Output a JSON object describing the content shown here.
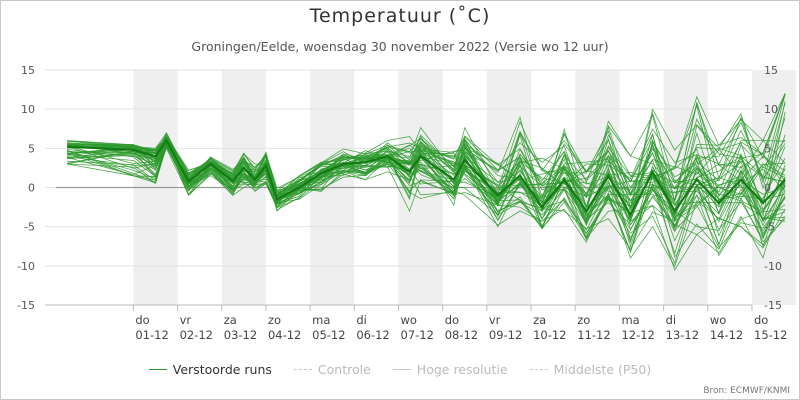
{
  "title": "Temperatuur (˚C)",
  "subtitle": "Groningen/Eelde, woensdag 30 november 2022 (Versie wo 12 uur)",
  "source": "Bron: ECMWF/KNMI",
  "colors": {
    "ensemble": "#2e9a2e",
    "ensemble_dark": "#137a13",
    "high_res": "#999999",
    "inactive_legend": "#c8c8c8",
    "band": "#efefef",
    "grid": "#e3e3e3"
  },
  "legend": [
    {
      "label": "Verstoorde runs",
      "active": true,
      "style": "solid",
      "color_key": "ensemble"
    },
    {
      "label": "Controle",
      "active": false,
      "style": "dashed",
      "color_key": "inactive_legend"
    },
    {
      "label": "Hoge resolutie",
      "active": false,
      "style": "solid",
      "color_key": "inactive_legend"
    },
    {
      "label": "Middelste (P50)",
      "active": false,
      "style": "dashed",
      "color_key": "inactive_legend"
    }
  ],
  "chart_data": {
    "type": "line",
    "title": "Temperatuur (˚C)",
    "xlabel": "",
    "ylabel": "",
    "ylim": [
      -15,
      15
    ],
    "yticks": [
      -15,
      -10,
      -5,
      0,
      5,
      10,
      15
    ],
    "y_axis_both_sides": true,
    "grid": true,
    "legend_position": "bottom",
    "x_range_days": [
      "30-11",
      "16-12"
    ],
    "day_labels": [
      {
        "day": "do",
        "date": "01-12"
      },
      {
        "day": "vr",
        "date": "02-12"
      },
      {
        "day": "za",
        "date": "03-12"
      },
      {
        "day": "zo",
        "date": "04-12"
      },
      {
        "day": "ma",
        "date": "05-12"
      },
      {
        "day": "di",
        "date": "06-12"
      },
      {
        "day": "wo",
        "date": "07-12"
      },
      {
        "day": "do",
        "date": "08-12"
      },
      {
        "day": "vr",
        "date": "09-12"
      },
      {
        "day": "za",
        "date": "10-12"
      },
      {
        "day": "zo",
        "date": "11-12"
      },
      {
        "day": "ma",
        "date": "12-12"
      },
      {
        "day": "di",
        "date": "13-12"
      },
      {
        "day": "wo",
        "date": "14-12"
      },
      {
        "day": "do",
        "date": "15-12"
      }
    ],
    "shaded_days": [
      "01-12",
      "03-12",
      "05-12",
      "07-12",
      "09-12",
      "11-12",
      "13-12",
      "15-12"
    ],
    "ensemble_member_count": 50,
    "ensemble_median": [
      {
        "t": "30-11 12:00",
        "y": 5.2
      },
      {
        "t": "01-12 00:00",
        "y": 4.8
      },
      {
        "t": "01-12 12:00",
        "y": 4.0
      },
      {
        "t": "01-12 18:00",
        "y": 6.0
      },
      {
        "t": "02-12 06:00",
        "y": 0.8
      },
      {
        "t": "02-12 18:00",
        "y": 3.0
      },
      {
        "t": "03-12 06:00",
        "y": 0.8
      },
      {
        "t": "03-12 12:00",
        "y": 2.5
      },
      {
        "t": "03-12 18:00",
        "y": 1.0
      },
      {
        "t": "04-12 00:00",
        "y": 2.8
      },
      {
        "t": "04-12 06:00",
        "y": -1.5
      },
      {
        "t": "04-12 18:00",
        "y": 0.0
      },
      {
        "t": "05-12 06:00",
        "y": 1.8
      },
      {
        "t": "05-12 18:00",
        "y": 3.0
      },
      {
        "t": "06-12 06:00",
        "y": 3.2
      },
      {
        "t": "06-12 18:00",
        "y": 4.0
      },
      {
        "t": "07-12 06:00",
        "y": 2.0
      },
      {
        "t": "07-12 12:00",
        "y": 4.0
      },
      {
        "t": "08-12 06:00",
        "y": 1.0
      },
      {
        "t": "08-12 12:00",
        "y": 3.5
      },
      {
        "t": "09-12 06:00",
        "y": -1.0
      },
      {
        "t": "09-12 18:00",
        "y": 1.5
      },
      {
        "t": "10-12 06:00",
        "y": -2.5
      },
      {
        "t": "10-12 18:00",
        "y": 1.0
      },
      {
        "t": "11-12 06:00",
        "y": -3.0
      },
      {
        "t": "11-12 18:00",
        "y": 1.5
      },
      {
        "t": "12-12 06:00",
        "y": -3.5
      },
      {
        "t": "12-12 18:00",
        "y": 2.0
      },
      {
        "t": "13-12 06:00",
        "y": -3.0
      },
      {
        "t": "13-12 18:00",
        "y": 1.0
      },
      {
        "t": "14-12 06:00",
        "y": -2.0
      },
      {
        "t": "14-12 18:00",
        "y": 1.0
      },
      {
        "t": "15-12 06:00",
        "y": -2.0
      },
      {
        "t": "15-12 18:00",
        "y": 1.0
      }
    ],
    "ensemble_spread_min": [
      3,
      1.5,
      0.5,
      5,
      -1,
      1.5,
      -1,
      0,
      -0.5,
      0.5,
      -3,
      -1.5,
      -0.5,
      1,
      1,
      2,
      -3,
      -2,
      -3,
      -1,
      -5,
      -3,
      -6,
      -3,
      -7,
      -4,
      -9,
      -5,
      -11,
      -6,
      -9,
      -5,
      -9,
      -5
    ],
    "ensemble_spread_max": [
      6,
      5.5,
      5,
      7,
      2.5,
      4,
      2.5,
      4.5,
      3,
      4.5,
      0,
      1.5,
      3.5,
      5,
      5,
      6,
      6.5,
      8,
      6,
      8,
      5,
      9,
      4,
      8,
      4,
      9,
      4,
      10,
      5,
      12,
      6,
      10,
      6,
      12
    ]
  }
}
